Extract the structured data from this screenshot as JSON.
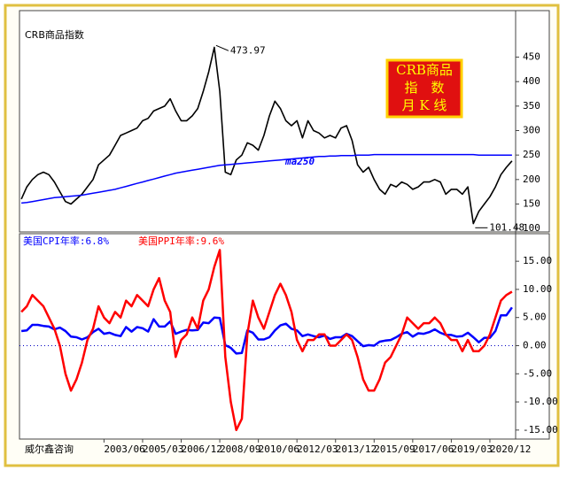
{
  "chart_data": [
    {
      "type": "line",
      "title": "CRB商品指数",
      "badge": [
        "CRB商品",
        "指　数",
        "月 K 线"
      ],
      "xlim": [
        "1999/08",
        "2022/02"
      ],
      "ylim": [
        93,
        545
      ],
      "yticks": [
        100,
        150,
        200,
        250,
        300,
        350,
        400,
        450
      ],
      "high": {
        "x": "2008/07",
        "value": 473.97
      },
      "low": {
        "x": "2020/04",
        "value": 101.48
      },
      "x": [
        "1999/09",
        "1999/12",
        "2000/03",
        "2000/06",
        "2000/09",
        "2000/12",
        "2001/03",
        "2001/06",
        "2001/09",
        "2001/12",
        "2002/03",
        "2002/06",
        "2002/09",
        "2002/12",
        "2003/03",
        "2003/06",
        "2003/09",
        "2003/12",
        "2004/03",
        "2004/06",
        "2004/09",
        "2004/12",
        "2005/03",
        "2005/06",
        "2005/09",
        "2005/12",
        "2006/03",
        "2006/06",
        "2006/09",
        "2006/12",
        "2007/03",
        "2007/06",
        "2007/09",
        "2007/12",
        "2008/03",
        "2008/06",
        "2008/09",
        "2008/12",
        "2009/03",
        "2009/06",
        "2009/09",
        "2009/12",
        "2010/03",
        "2010/06",
        "2010/09",
        "2010/12",
        "2011/03",
        "2011/06",
        "2011/09",
        "2011/12",
        "2012/03",
        "2012/06",
        "2012/09",
        "2012/12",
        "2013/03",
        "2013/06",
        "2013/09",
        "2013/12",
        "2014/03",
        "2014/06",
        "2014/09",
        "2014/12",
        "2015/03",
        "2015/06",
        "2015/09",
        "2015/12",
        "2016/03",
        "2016/06",
        "2016/09",
        "2016/12",
        "2017/03",
        "2017/06",
        "2017/09",
        "2017/12",
        "2018/03",
        "2018/06",
        "2018/09",
        "2018/12",
        "2019/03",
        "2019/06",
        "2019/09",
        "2019/12",
        "2020/03",
        "2020/06",
        "2020/09",
        "2020/12",
        "2021/03",
        "2021/06",
        "2021/09",
        "2021/12"
      ],
      "series": [
        {
          "color": "#000000",
          "values": [
            160,
            185,
            200,
            210,
            215,
            210,
            195,
            175,
            155,
            150,
            160,
            170,
            185,
            200,
            230,
            240,
            250,
            270,
            290,
            295,
            300,
            305,
            320,
            325,
            340,
            345,
            350,
            365,
            340,
            320,
            320,
            330,
            345,
            380,
            420,
            470,
            380,
            215,
            210,
            240,
            250,
            275,
            270,
            260,
            290,
            330,
            360,
            345,
            320,
            310,
            320,
            285,
            320,
            300,
            295,
            285,
            290,
            285,
            305,
            310,
            280,
            230,
            215,
            225,
            200,
            180,
            170,
            190,
            185,
            195,
            190,
            180,
            185,
            195,
            195,
            200,
            195,
            170,
            180,
            180,
            170,
            185,
            110,
            135,
            150,
            165,
            185,
            210,
            225,
            238
          ]
        },
        {
          "name": "ma250",
          "color": "#0000ff",
          "values": [
            152,
            153,
            155,
            157,
            159,
            161,
            163,
            164,
            165,
            166,
            167,
            168,
            170,
            172,
            174,
            176,
            178,
            180,
            183,
            186,
            189,
            192,
            195,
            198,
            201,
            204,
            207,
            210,
            213,
            215,
            217,
            219,
            221,
            223,
            225,
            227,
            229,
            230,
            231,
            232,
            233,
            234,
            235,
            236,
            237,
            238,
            239,
            240,
            241,
            242,
            243,
            244,
            245,
            246,
            247,
            247,
            248,
            248,
            249,
            249,
            249,
            250,
            250,
            250,
            251,
            251,
            251,
            251,
            251,
            251,
            251,
            251,
            251,
            251,
            251,
            251,
            251,
            251,
            251,
            251,
            251,
            251,
            251,
            250,
            250,
            250,
            250,
            250,
            250,
            250
          ]
        }
      ]
    },
    {
      "type": "line",
      "xlim": [
        "1999/08",
        "2022/02"
      ],
      "ylim": [
        -16.6,
        19.9
      ],
      "baseline": 0,
      "yticks": [
        {
          "value": -15,
          "label": "-15.00"
        },
        {
          "value": -10,
          "label": "-10.00"
        },
        {
          "value": -5,
          "label": "-5.00"
        },
        {
          "value": 0,
          "label": "0.00"
        },
        {
          "value": 5,
          "label": "5.00"
        },
        {
          "value": 10,
          "label": "10.00"
        },
        {
          "value": 15,
          "label": "15.00"
        }
      ],
      "xticks": [
        "2003/06",
        "2005/03",
        "2006/12",
        "2008/09",
        "2010/06",
        "2012/03",
        "2013/12",
        "2015/09",
        "2017/06",
        "2019/03",
        "2020/12"
      ],
      "x": [
        "1999/09",
        "1999/12",
        "2000/03",
        "2000/06",
        "2000/09",
        "2000/12",
        "2001/03",
        "2001/06",
        "2001/09",
        "2001/12",
        "2002/03",
        "2002/06",
        "2002/09",
        "2002/12",
        "2003/03",
        "2003/06",
        "2003/09",
        "2003/12",
        "2004/03",
        "2004/06",
        "2004/09",
        "2004/12",
        "2005/03",
        "2005/06",
        "2005/09",
        "2005/12",
        "2006/03",
        "2006/06",
        "2006/09",
        "2006/12",
        "2007/03",
        "2007/06",
        "2007/09",
        "2007/12",
        "2008/03",
        "2008/06",
        "2008/09",
        "2008/12",
        "2009/03",
        "2009/06",
        "2009/09",
        "2009/12",
        "2010/03",
        "2010/06",
        "2010/09",
        "2010/12",
        "2011/03",
        "2011/06",
        "2011/09",
        "2011/12",
        "2012/03",
        "2012/06",
        "2012/09",
        "2012/12",
        "2013/03",
        "2013/06",
        "2013/09",
        "2013/12",
        "2014/03",
        "2014/06",
        "2014/09",
        "2014/12",
        "2015/03",
        "2015/06",
        "2015/09",
        "2015/12",
        "2016/03",
        "2016/06",
        "2016/09",
        "2016/12",
        "2017/03",
        "2017/06",
        "2017/09",
        "2017/12",
        "2018/03",
        "2018/06",
        "2018/09",
        "2018/12",
        "2019/03",
        "2019/06",
        "2019/09",
        "2019/12",
        "2020/03",
        "2020/06",
        "2020/09",
        "2020/12",
        "2021/03",
        "2021/06",
        "2021/09",
        "2021/12"
      ],
      "series": [
        {
          "name": "美国CPI年率:6.8%",
          "color": "#0000ff",
          "values": [
            2.6,
            2.7,
            3.7,
            3.7,
            3.5,
            3.4,
            2.9,
            3.2,
            2.6,
            1.6,
            1.5,
            1.1,
            1.5,
            2.4,
            3.0,
            2.1,
            2.3,
            1.9,
            1.7,
            3.3,
            2.5,
            3.3,
            3.1,
            2.5,
            4.7,
            3.4,
            3.4,
            4.3,
            2.1,
            2.5,
            2.8,
            2.7,
            2.8,
            4.1,
            4.0,
            5.0,
            4.9,
            0.1,
            -0.4,
            -1.4,
            -1.3,
            2.7,
            2.3,
            1.1,
            1.1,
            1.5,
            2.7,
            3.6,
            3.9,
            3.0,
            2.7,
            1.7,
            2.0,
            1.7,
            1.5,
            1.8,
            1.2,
            1.5,
            1.5,
            2.1,
            1.7,
            0.8,
            -0.1,
            0.1,
            0.0,
            0.7,
            0.9,
            1.0,
            1.5,
            2.1,
            2.4,
            1.6,
            2.2,
            2.1,
            2.4,
            2.9,
            2.3,
            1.9,
            1.9,
            1.6,
            1.7,
            2.3,
            1.5,
            0.6,
            1.4,
            1.4,
            2.6,
            5.4,
            5.4,
            6.8
          ]
        },
        {
          "name": "美国PPI年率:9.6%",
          "color": "#ff0000",
          "values": [
            6,
            7,
            9,
            8,
            7,
            5,
            3,
            0,
            -5,
            -8,
            -6,
            -3,
            1,
            3,
            7,
            5,
            4,
            6,
            5,
            8,
            7,
            9,
            8,
            7,
            10,
            12,
            8,
            6,
            -2,
            1,
            2,
            5,
            3,
            8,
            10,
            14,
            17,
            -2,
            -10,
            -15,
            -13,
            2,
            8,
            5,
            3,
            6,
            9,
            11,
            9,
            6,
            1,
            -1,
            1,
            1,
            2,
            2,
            0,
            0,
            1,
            2,
            1,
            -2,
            -6,
            -8,
            -8,
            -6,
            -3,
            -2,
            0,
            2,
            5,
            4,
            3,
            4,
            4,
            5,
            4,
            2,
            1,
            1,
            -1,
            1,
            -1,
            -1,
            0,
            2,
            5,
            8,
            9,
            9.6
          ]
        }
      ]
    }
  ],
  "footer": "威尔鑫咨询"
}
